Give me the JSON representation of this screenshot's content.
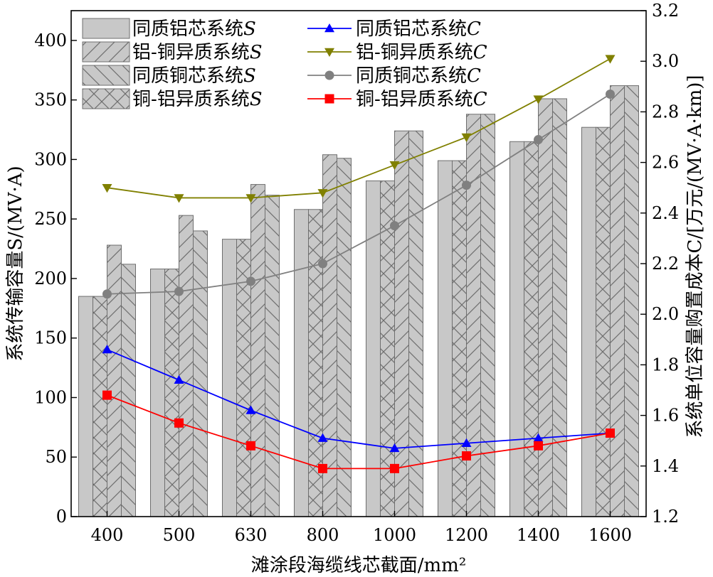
{
  "chart_data": {
    "type": "bar",
    "xlabel": "滩涂段海缆线芯截面/mm²",
    "ylabel_left": "系统传输容量S/(MV·A)",
    "ylabel_right": "系统单位容量购置成本C/[万元/(MV·A·km)]",
    "categories": [
      "400",
      "500",
      "630",
      "800",
      "1000",
      "1200",
      "1400",
      "1600"
    ],
    "ylim_left": [
      0,
      425
    ],
    "ylim_right": [
      1.2,
      3.2
    ],
    "left_ticks": [
      0,
      50,
      100,
      150,
      200,
      250,
      300,
      350,
      400
    ],
    "right_ticks": [
      1.2,
      1.4,
      1.6,
      1.8,
      2.0,
      2.2,
      2.4,
      2.6,
      2.8,
      3.0,
      3.2
    ],
    "bar_series": [
      {
        "name": "同质铝芯系统S",
        "pattern": "solid",
        "values": [
          185,
          208,
          233,
          258,
          282,
          299,
          315,
          327
        ]
      },
      {
        "name": "铝-铜异质系统S",
        "pattern": "forward-diagonal",
        "values": [
          228,
          253,
          279,
          304,
          324,
          338,
          351,
          362
        ]
      },
      {
        "name": "同质铜芯系统S",
        "pattern": "back-diagonal",
        "values": [
          212,
          240,
          270,
          301,
          324,
          338,
          351,
          362
        ]
      },
      {
        "name": "铜-铝异质系统S",
        "pattern": "cross",
        "values": [
          185,
          208,
          233,
          258,
          282,
          299,
          315,
          327
        ]
      }
    ],
    "line_series": [
      {
        "name": "同质铝芯系统C",
        "color": "#0000ff",
        "marker": "triangle-up",
        "values": [
          1.86,
          1.74,
          1.62,
          1.51,
          1.47,
          1.49,
          1.51,
          1.53
        ]
      },
      {
        "name": "铝-铜异质系统C",
        "color": "#808000",
        "marker": "triangle-down",
        "values": [
          2.5,
          2.46,
          2.46,
          2.48,
          2.59,
          2.7,
          2.85,
          3.01
        ]
      },
      {
        "name": "同质铜芯系统C",
        "color": "#808080",
        "marker": "circle",
        "values": [
          2.08,
          2.09,
          2.13,
          2.2,
          2.35,
          2.51,
          2.69,
          2.87
        ]
      },
      {
        "name": "铜-铝异质系统C",
        "color": "#ff0000",
        "marker": "square",
        "values": [
          1.68,
          1.57,
          1.48,
          1.39,
          1.39,
          1.44,
          1.48,
          1.53
        ]
      }
    ],
    "legend": {
      "placement": "top-left, two columns",
      "entries": [
        {
          "text": "同质铝芯系统",
          "symbol": "S",
          "kind": "bar",
          "index": 0
        },
        {
          "text": "同质铝芯系统",
          "symbol": "C",
          "kind": "line",
          "index": 0
        },
        {
          "text": "铝-铜异质系统",
          "symbol": "S",
          "kind": "bar",
          "index": 1
        },
        {
          "text": "铝-铜异质系统",
          "symbol": "C",
          "kind": "line",
          "index": 1
        },
        {
          "text": "同质铜芯系统",
          "symbol": "S",
          "kind": "bar",
          "index": 2
        },
        {
          "text": "同质铜芯系统",
          "symbol": "C",
          "kind": "line",
          "index": 2
        },
        {
          "text": "铜-铝异质系统",
          "symbol": "S",
          "kind": "bar",
          "index": 3
        },
        {
          "text": "铜-铝异质系统",
          "symbol": "C",
          "kind": "line",
          "index": 3
        }
      ]
    },
    "grid": false,
    "colors": {
      "bar_fill": "#c8c8c8",
      "bar_edge": "#6e6e6e"
    }
  }
}
